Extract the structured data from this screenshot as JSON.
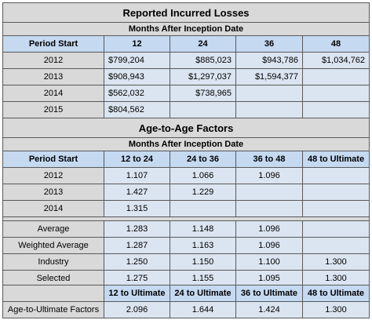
{
  "losses": {
    "title": "Reported Incurred Losses",
    "subtitle": "Months After Inception Date",
    "period_label": "Period Start",
    "columns": [
      "12",
      "24",
      "36",
      "48"
    ],
    "rows": [
      {
        "period": "2012",
        "values": [
          "$799,204",
          "$885,023",
          "$943,786",
          "$1,034,762"
        ]
      },
      {
        "period": "2013",
        "values": [
          "$908,943",
          "$1,297,037",
          "$1,594,377",
          ""
        ]
      },
      {
        "period": "2014",
        "values": [
          "$562,032",
          "$738,965",
          "",
          ""
        ]
      },
      {
        "period": "2015",
        "values": [
          "$804,562",
          "",
          "",
          ""
        ]
      }
    ]
  },
  "factors": {
    "title": "Age-to-Age Factors",
    "subtitle": "Months After Inception Date",
    "period_label": "Period Start",
    "columns": [
      "12 to 24",
      "24 to 36",
      "36 to 48",
      "48 to Ultimate"
    ],
    "rows": [
      {
        "period": "2012",
        "values": [
          "1.107",
          "1.066",
          "1.096",
          ""
        ]
      },
      {
        "period": "2013",
        "values": [
          "1.427",
          "1.229",
          "",
          ""
        ]
      },
      {
        "period": "2014",
        "values": [
          "1.315",
          "",
          "",
          ""
        ]
      }
    ],
    "summary": [
      {
        "label": "Average",
        "values": [
          "1.283",
          "1.148",
          "1.096",
          ""
        ]
      },
      {
        "label": "Weighted Average",
        "values": [
          "1.287",
          "1.163",
          "1.096",
          ""
        ]
      },
      {
        "label": "Industry",
        "values": [
          "1.250",
          "1.150",
          "1.100",
          "1.300"
        ]
      },
      {
        "label": "Selected",
        "values": [
          "1.275",
          "1.155",
          "1.095",
          "1.300"
        ]
      }
    ]
  },
  "ultimate": {
    "columns": [
      "12 to Ultimate",
      "24 to Ultimate",
      "36 to Ultimate",
      "48 to Ultimate"
    ],
    "label": "Age-to-Ultimate Factors",
    "values": [
      "2.096",
      "1.644",
      "1.424",
      "1.300"
    ]
  }
}
